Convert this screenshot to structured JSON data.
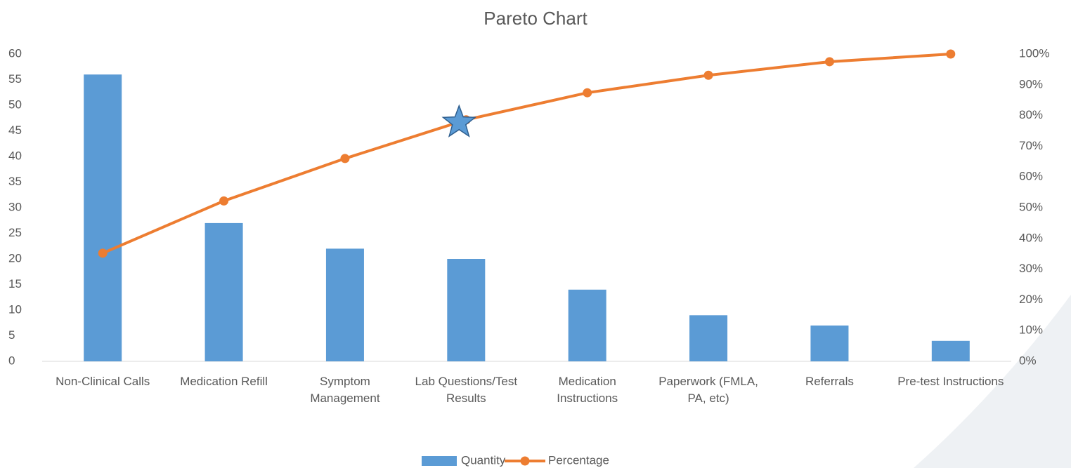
{
  "chart_data": {
    "type": "pareto",
    "title": "Pareto Chart",
    "categories": [
      "Non-Clinical Calls",
      "Medication Refill",
      "Symptom Management",
      "Lab Questions/Test Results",
      "Medication Instructions",
      "Paperwork (FMLA, PA, etc)",
      "Referrals",
      "Pre-test Instructions"
    ],
    "series": [
      {
        "name": "Quantity",
        "color": "#5b9bd5",
        "type": "bar",
        "values": [
          56,
          27,
          22,
          20,
          14,
          9,
          7,
          4
        ]
      },
      {
        "name": "Percentage",
        "color": "#ed7d31",
        "type": "line",
        "axis": "y2",
        "values": [
          35.2,
          52.2,
          66.0,
          78.6,
          87.4,
          93.1,
          97.5,
          100
        ]
      }
    ],
    "ylim": [
      0,
      60
    ],
    "yticks": [
      0,
      5,
      10,
      15,
      20,
      25,
      30,
      35,
      40,
      45,
      50,
      55,
      60
    ],
    "y2lim": [
      0,
      100
    ],
    "y2ticks": [
      {
        "value": 0,
        "label": "0%"
      },
      {
        "value": 10,
        "label": "10%"
      },
      {
        "value": 20,
        "label": "20%"
      },
      {
        "value": 30,
        "label": "30%"
      },
      {
        "value": 40,
        "label": "40%"
      },
      {
        "value": 50,
        "label": "50%"
      },
      {
        "value": 60,
        "label": "60%"
      },
      {
        "value": 70,
        "label": "70%"
      },
      {
        "value": 80,
        "label": "80%"
      },
      {
        "value": 90,
        "label": "90%"
      },
      {
        "value": 100,
        "label": "100%"
      }
    ],
    "legend": "bottom"
  }
}
